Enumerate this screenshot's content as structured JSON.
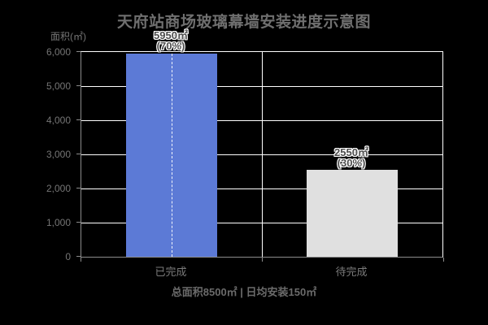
{
  "page": {
    "background_color": "#000000",
    "plot_background_color": "#000000",
    "grid_line_color": "#ffffff",
    "axis_line_color": "#8c8c8c",
    "text_color": "#757575",
    "title_color": "#6f6f6f"
  },
  "chart_data": {
    "type": "bar",
    "title": "天府站商场玻璃幕墙安装进度示意图",
    "ylabel": "面积(㎡)",
    "categories": [
      "已完成",
      "待完成"
    ],
    "values": [
      5950,
      2550
    ],
    "percentages": [
      70,
      30
    ],
    "value_labels": [
      [
        "5950㎡",
        "(70%)"
      ],
      [
        "2550㎡",
        "(30%)"
      ]
    ],
    "bar_colors": [
      "#5c7ad6",
      "#e0e0e0"
    ],
    "ylim": [
      0,
      6000
    ],
    "ytick_interval": 1000,
    "ytick_labels": [
      "0",
      "1,000",
      "2,000",
      "3,000",
      "4,000",
      "5,000",
      "6,000"
    ],
    "grid": true,
    "legend": "none",
    "annotation": "总面积8500㎡ | 日均安装150㎡",
    "completed_bar_dashline": true
  }
}
